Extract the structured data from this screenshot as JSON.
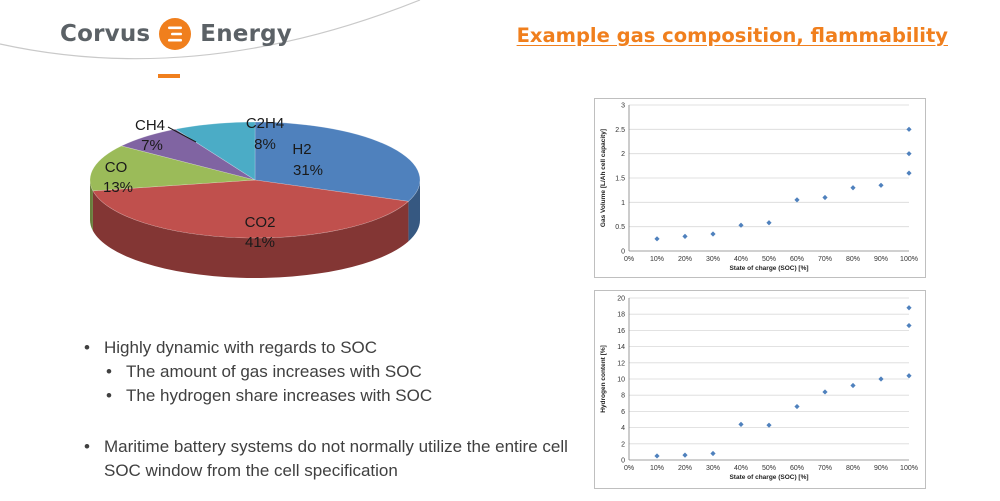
{
  "header": {
    "logo_left": "Corvus",
    "logo_right": "Energy",
    "title": "Example gas composition, flammability",
    "brand_color": "#f07f1d"
  },
  "pie_chart": {
    "type": "pie",
    "slices": [
      {
        "name": "H2",
        "value": 31,
        "label": "31%",
        "color": "#4f81bd"
      },
      {
        "name": "CO2",
        "value": 41,
        "label": "41%",
        "color": "#c0504d"
      },
      {
        "name": "CO",
        "value": 13,
        "label": "13%",
        "color": "#9bbb59"
      },
      {
        "name": "CH4",
        "value": 7,
        "label": "7%",
        "color": "#8064a2"
      },
      {
        "name": "C2H4",
        "value": 8,
        "label": "8%",
        "color": "#4bacc6"
      }
    ]
  },
  "bullets": [
    {
      "text": "Highly dynamic with regards to SOC",
      "level": 1
    },
    {
      "text": "The amount of gas increases with SOC",
      "level": 2
    },
    {
      "text": "The hydrogen share increases with SOC",
      "level": 2
    },
    {
      "text": "Maritime battery systems do not normally utilize the entire cell SOC window from the cell specification",
      "level": 1
    }
  ],
  "chart_data": [
    {
      "type": "scatter",
      "title": "",
      "xlabel": "State of charge (SOC) [%]",
      "ylabel": "Gas Volume [L/Ah cell capacity]",
      "x_ticks": [
        "0%",
        "10%",
        "20%",
        "30%",
        "40%",
        "50%",
        "60%",
        "70%",
        "80%",
        "90%",
        "100%"
      ],
      "y_ticks": [
        "0",
        "0.5",
        "1",
        "1.5",
        "2",
        "2.5",
        "3"
      ],
      "xlim": [
        0,
        100
      ],
      "ylim": [
        0,
        3
      ],
      "grid": "horizontal",
      "marker_color": "#4f81bd",
      "points": [
        {
          "x": 10,
          "y": 0.25
        },
        {
          "x": 20,
          "y": 0.3
        },
        {
          "x": 30,
          "y": 0.35
        },
        {
          "x": 40,
          "y": 0.53
        },
        {
          "x": 50,
          "y": 0.58
        },
        {
          "x": 60,
          "y": 1.05
        },
        {
          "x": 70,
          "y": 1.1
        },
        {
          "x": 80,
          "y": 1.3
        },
        {
          "x": 90,
          "y": 1.35
        },
        {
          "x": 100,
          "y": 1.6
        },
        {
          "x": 100,
          "y": 2.0
        },
        {
          "x": 100,
          "y": 2.5
        }
      ]
    },
    {
      "type": "scatter",
      "title": "",
      "xlabel": "State of charge (SOC) [%]",
      "ylabel": "Hydrogen content [%]",
      "x_ticks": [
        "0%",
        "10%",
        "20%",
        "30%",
        "40%",
        "50%",
        "60%",
        "70%",
        "80%",
        "90%",
        "100%"
      ],
      "y_ticks": [
        "0",
        "2",
        "4",
        "6",
        "8",
        "10",
        "12",
        "14",
        "16",
        "18",
        "20"
      ],
      "xlim": [
        0,
        100
      ],
      "ylim": [
        0,
        20
      ],
      "grid": "horizontal",
      "marker_color": "#4f81bd",
      "points": [
        {
          "x": 10,
          "y": 0.5
        },
        {
          "x": 20,
          "y": 0.6
        },
        {
          "x": 30,
          "y": 0.8
        },
        {
          "x": 40,
          "y": 4.4
        },
        {
          "x": 50,
          "y": 4.3
        },
        {
          "x": 60,
          "y": 6.6
        },
        {
          "x": 70,
          "y": 8.4
        },
        {
          "x": 80,
          "y": 9.2
        },
        {
          "x": 90,
          "y": 10.0
        },
        {
          "x": 100,
          "y": 10.4
        },
        {
          "x": 100,
          "y": 16.6
        },
        {
          "x": 100,
          "y": 18.8
        }
      ]
    }
  ]
}
